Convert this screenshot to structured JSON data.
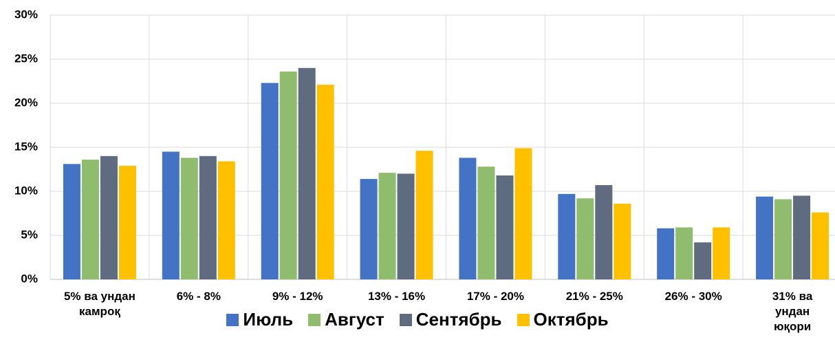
{
  "chart_data": {
    "type": "bar",
    "categories": [
      "5%  ва ундан камроқ",
      "6%  - 8%",
      "9%  - 12%",
      "13%  - 16%",
      "17%  - 20%",
      "21%  - 25%",
      "26%  - 30%",
      "31% ва ундан юқори"
    ],
    "series": [
      {
        "name": "Июль",
        "color": "#4472c4",
        "values": [
          13.1,
          14.5,
          22.3,
          11.4,
          13.8,
          9.7,
          5.8,
          9.4
        ]
      },
      {
        "name": "Август",
        "color": "#8fbd6d",
        "values": [
          13.6,
          13.8,
          23.6,
          12.1,
          12.8,
          9.2,
          5.9,
          9.1
        ]
      },
      {
        "name": "Сентябрь",
        "color": "#5f6b7e",
        "values": [
          14.0,
          14.0,
          24.0,
          12.0,
          11.8,
          10.7,
          4.2,
          9.5
        ]
      },
      {
        "name": "Октябрь",
        "color": "#ffc000",
        "values": [
          12.9,
          13.4,
          22.1,
          14.6,
          14.9,
          8.6,
          5.9,
          7.6
        ]
      }
    ],
    "ylim": [
      0,
      30
    ],
    "yticks": [
      {
        "value": 0,
        "label": "0%"
      },
      {
        "value": 5,
        "label": "5%"
      },
      {
        "value": 10,
        "label": "10%"
      },
      {
        "value": 15,
        "label": "15%"
      },
      {
        "value": 20,
        "label": "20%"
      },
      {
        "value": 25,
        "label": "25%"
      },
      {
        "value": 30,
        "label": "30%"
      }
    ],
    "grid": true,
    "legend": "bottom"
  }
}
